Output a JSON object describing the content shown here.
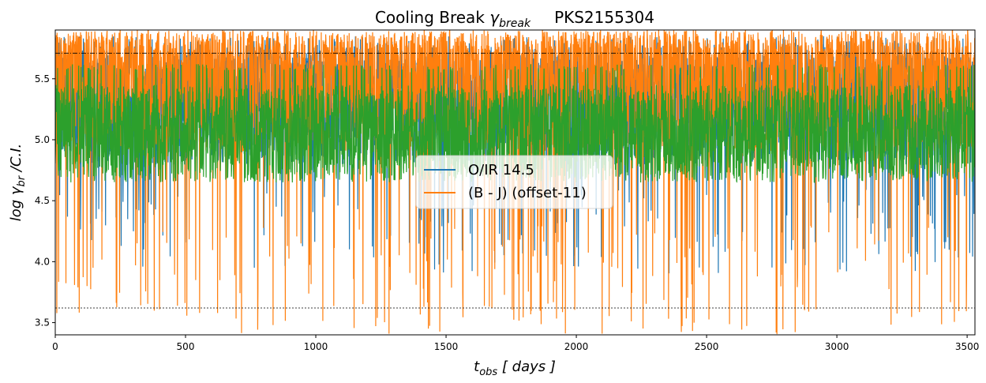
{
  "chart_data": {
    "type": "line",
    "title_prefix": "Cooling Break ",
    "title_symbol": "γ",
    "title_symbol_sub": "break",
    "title_source": "PKS2155304",
    "xlabel_main": "t",
    "xlabel_sub": "obs",
    "xlabel_unit": " [ days ]",
    "ylabel_text": "log γ",
    "ylabel_sub": "br",
    "ylabel_tail": " /C.I.",
    "xlim": [
      0,
      3530
    ],
    "ylim": [
      3.4,
      5.9
    ],
    "xticks": [
      0,
      500,
      1000,
      1500,
      2000,
      2500,
      3000,
      3500
    ],
    "xtick_labels": [
      "0",
      "500",
      "1000",
      "1500",
      "2000",
      "2500",
      "3000",
      "3500"
    ],
    "yticks": [
      3.5,
      4.0,
      4.5,
      5.0,
      5.5
    ],
    "ytick_labels": [
      "3.5",
      "4.0",
      "4.5",
      "5.0",
      "5.5"
    ],
    "grid": false,
    "legend_placement": "center",
    "reference_lines": [
      {
        "y": 5.71,
        "style": "dashdot",
        "color": "#000000"
      },
      {
        "y": 3.62,
        "style": "dotted",
        "color": "#000000"
      }
    ],
    "series": [
      {
        "name": "O/IR 14.5",
        "color": "#1f77b4",
        "n_points": 3530,
        "range": [
          3.6,
          5.85
        ],
        "center": 5.2
      },
      {
        "name": "(B - J)  (offset-11)",
        "color": "#ff7f0e",
        "n_points": 3530,
        "range": [
          3.4,
          5.9
        ],
        "center": 5.3
      },
      {
        "name": "",
        "color": "#2ca02c",
        "n_points": 3530,
        "range": [
          4.65,
          5.62
        ],
        "center": 5.1
      }
    ]
  }
}
